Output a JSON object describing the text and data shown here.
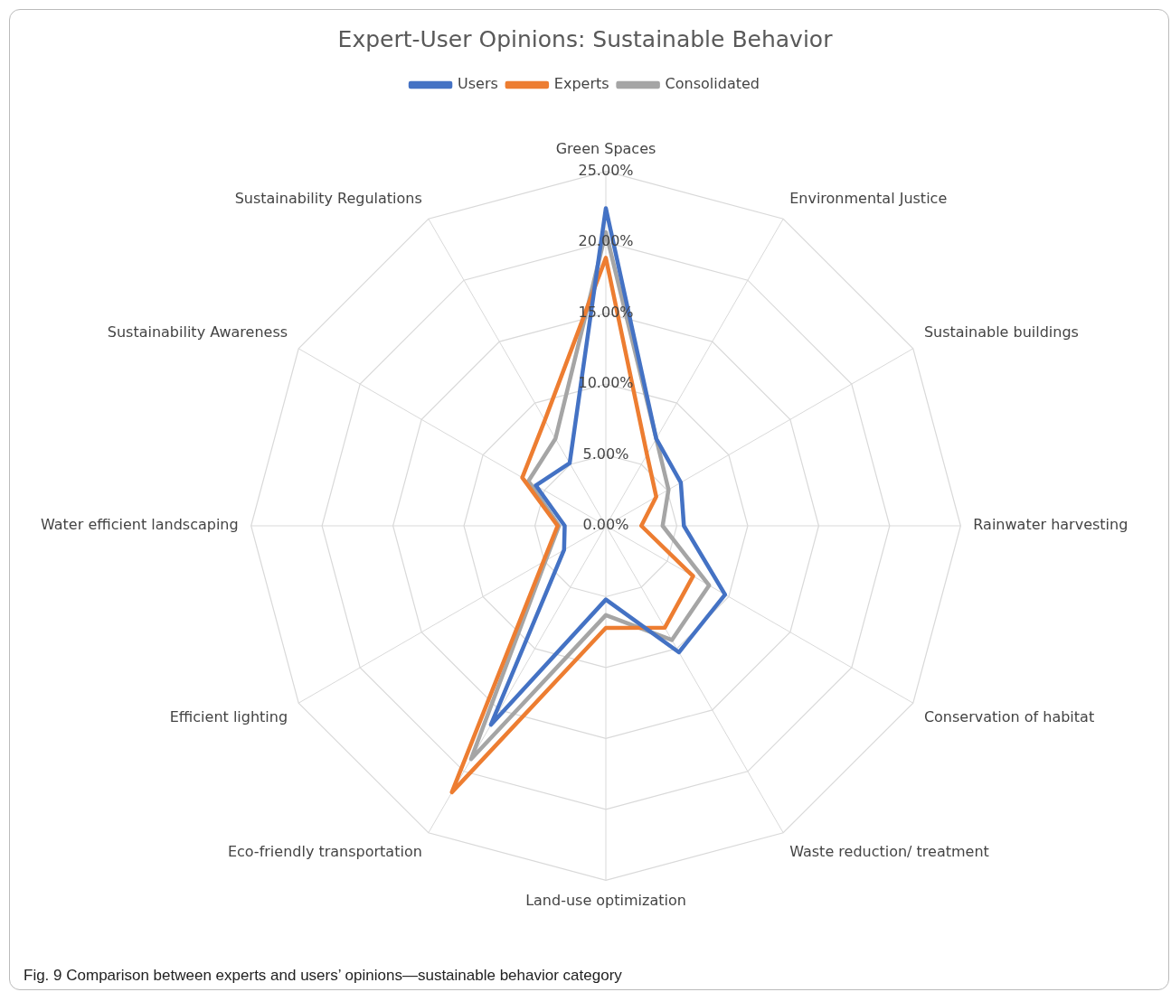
{
  "chart_data": {
    "type": "radar",
    "title": "Expert-User Opinions: Sustainable Behavior",
    "categories": [
      "Green Spaces",
      "Environmental Justice",
      "Sustainable buildings",
      "Rainwater harvesting",
      "Conservation of habitat",
      "Waste reduction/ treatment",
      "Land-use optimization",
      "Eco-friendly transportation",
      "Efficient lighting",
      "Water efficient landscaping",
      "Sustainability Awareness",
      "Sustainability Regulations"
    ],
    "series": [
      {
        "name": "Users",
        "color": "#4472c4",
        "values": [
          22.4,
          7.1,
          6.1,
          5.5,
          9.7,
          10.3,
          5.2,
          16.2,
          3.4,
          2.9,
          5.7,
          5.1
        ]
      },
      {
        "name": "Experts",
        "color": "#ed7d31",
        "values": [
          18.9,
          5.8,
          4.1,
          2.5,
          7.1,
          8.3,
          7.2,
          21.7,
          5.1,
          3.4,
          6.8,
          8.6
        ]
      },
      {
        "name": "Consolidated",
        "color": "#a5a5a5",
        "values": [
          20.7,
          7.1,
          5.1,
          4.0,
          8.4,
          9.3,
          6.3,
          19.0,
          4.9,
          3.3,
          6.3,
          7.1
        ]
      }
    ],
    "ylim": [
      0,
      25
    ],
    "yticks": [
      {
        "value": 0,
        "label": "0.00%"
      },
      {
        "value": 5,
        "label": "5.00%"
      },
      {
        "value": 10,
        "label": "10.00%"
      },
      {
        "value": 15,
        "label": "15.00%"
      },
      {
        "value": 20,
        "label": "20.00%"
      },
      {
        "value": 25,
        "label": "25.00%"
      }
    ],
    "grid": true,
    "legend": "top",
    "marker": "none",
    "line_style": "solid",
    "annotations": [
      "Fig. 9 Comparison between experts and users’ opinions—sustainable behavior category"
    ]
  }
}
